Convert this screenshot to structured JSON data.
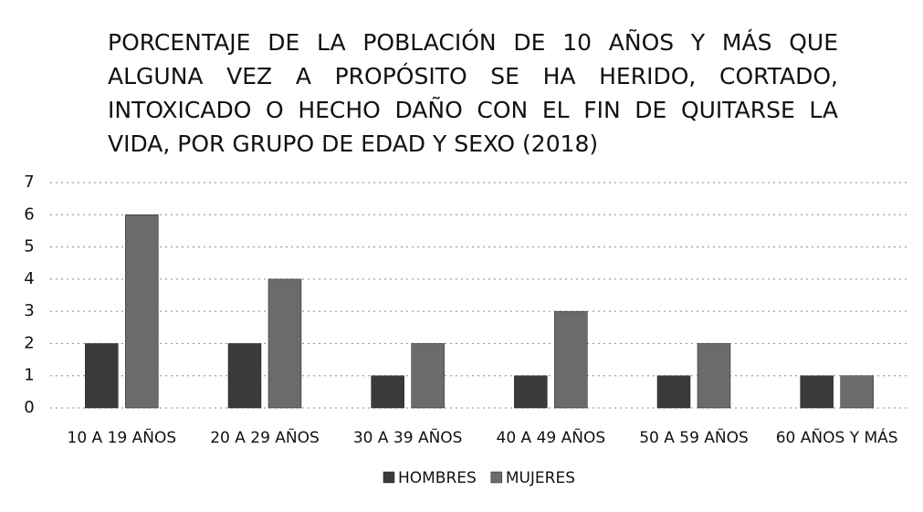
{
  "chart_data": {
    "type": "bar",
    "title": "PORCENTAJE DE LA POBLACIÓN DE 10 AÑOS Y MÁS QUE ALGUNA VEZ A PROPÓSITO SE HA HERIDO, CORTADO, INTOXICADO O HECHO DAÑO CON EL FIN DE QUITARSE LA VIDA, POR GRUPO DE EDAD Y SEXO (2018)",
    "categories": [
      "10 A 19 AÑOS",
      "20 A 29 AÑOS",
      "30 A 39 AÑOS",
      "40 A 49 AÑOS",
      "50 A 59 AÑOS",
      "60 AÑOS Y MÁS"
    ],
    "series": [
      {
        "name": "HOMBRES",
        "color": "#3a3a3a",
        "values": [
          2,
          2,
          1,
          1,
          1,
          1
        ]
      },
      {
        "name": "MUJERES",
        "color": "#6b6b6b",
        "values": [
          6,
          4,
          2,
          3,
          2,
          1
        ]
      }
    ],
    "ylim": [
      0,
      7
    ],
    "yticks": [
      0,
      1,
      2,
      3,
      4,
      5,
      6,
      7
    ],
    "grid": true,
    "legend": "bottom"
  }
}
